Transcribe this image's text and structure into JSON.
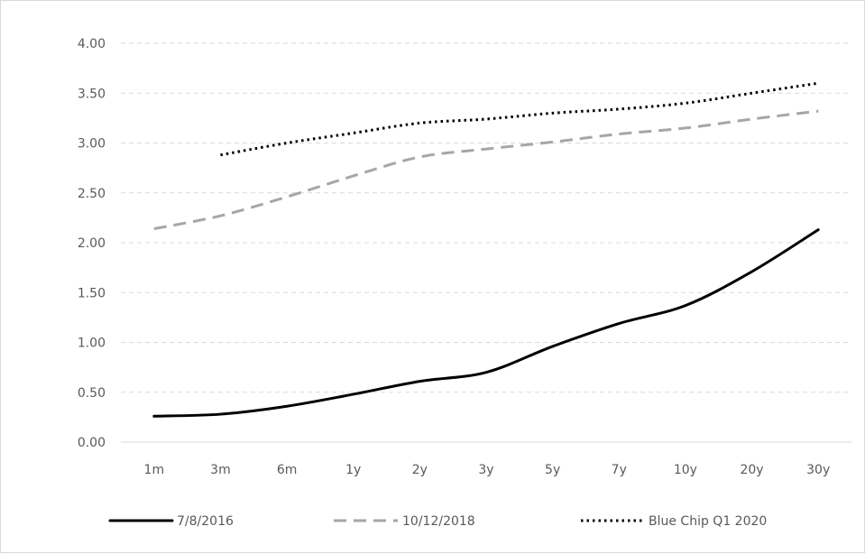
{
  "chart_data": {
    "type": "line",
    "categories": [
      "1m",
      "3m",
      "6m",
      "1y",
      "2y",
      "3y",
      "5y",
      "7y",
      "10y",
      "20y",
      "30y"
    ],
    "series": [
      {
        "name": "7/8/2016",
        "values": [
          0.26,
          0.28,
          0.36,
          0.48,
          0.61,
          0.7,
          0.96,
          1.19,
          1.37,
          1.71,
          2.13
        ],
        "color": "#000000",
        "style": "solid"
      },
      {
        "name": "10/12/2018",
        "values": [
          2.14,
          2.27,
          2.46,
          2.67,
          2.86,
          2.94,
          3.01,
          3.09,
          3.15,
          3.24,
          3.32
        ],
        "color": "#a6a6a6",
        "style": "dashed"
      },
      {
        "name": "Blue Chip Q1 2020",
        "values": [
          null,
          2.88,
          3.0,
          3.1,
          3.2,
          3.24,
          3.3,
          3.34,
          3.4,
          3.5,
          3.6
        ],
        "color": "#000000",
        "style": "dotted"
      }
    ],
    "ylim": [
      0,
      4
    ],
    "yticks": [
      "0.00",
      "0.50",
      "1.00",
      "1.50",
      "2.00",
      "2.50",
      "3.00",
      "3.50",
      "4.00"
    ],
    "grid": "horizontal dashed",
    "legend_position": "bottom"
  }
}
